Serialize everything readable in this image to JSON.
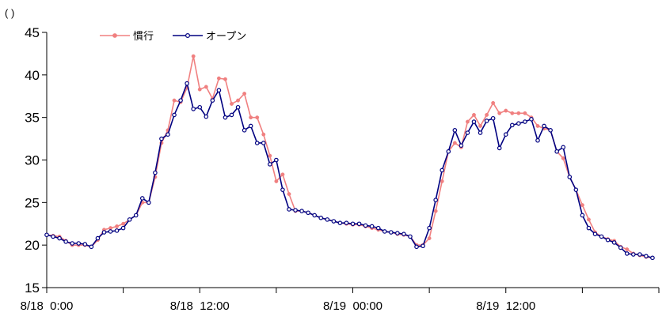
{
  "chart_data": {
    "type": "line",
    "unit_label": "( )",
    "title": "",
    "xlabel": "",
    "ylabel": "",
    "ylim": [
      15,
      45
    ],
    "yticks": [
      15,
      20,
      25,
      30,
      35,
      40,
      45
    ],
    "x_range_hours": [
      0,
      48
    ],
    "x_tick_labels": [
      {
        "hour": 0,
        "label": "8/18  0:00"
      },
      {
        "hour": 12,
        "label": "8/18  12:00"
      },
      {
        "hour": 24,
        "label": "8/19  00:00"
      },
      {
        "hour": 36,
        "label": "8/19  12:00"
      }
    ],
    "x_minor_ticks_hours": [
      6,
      18,
      30,
      42
    ],
    "grid": false,
    "legend_placement": "top-left",
    "series": [
      {
        "name": "慣行",
        "color": "#f08080",
        "marker": "filled-circle",
        "x": [
          0.0,
          0.5,
          1.0,
          1.5,
          2.0,
          2.5,
          3.0,
          3.5,
          4.0,
          4.5,
          5.0,
          5.5,
          6.0,
          6.5,
          7.0,
          7.5,
          8.0,
          8.5,
          9.0,
          9.5,
          10.0,
          10.5,
          11.0,
          11.5,
          12.0,
          12.5,
          13.0,
          13.5,
          14.0,
          14.5,
          15.0,
          15.5,
          16.0,
          16.5,
          17.0,
          17.5,
          18.0,
          18.5,
          19.0,
          19.5,
          20.0,
          20.5,
          21.0,
          21.5,
          22.0,
          22.5,
          23.0,
          23.5,
          24.0,
          24.5,
          25.0,
          25.5,
          26.0,
          26.5,
          27.0,
          27.5,
          28.0,
          28.5,
          29.0,
          29.5,
          30.0,
          30.5,
          31.0,
          31.5,
          32.0,
          32.5,
          33.0,
          33.5,
          34.0,
          34.5,
          35.0,
          35.5,
          36.0,
          36.5,
          37.0,
          37.5,
          38.0,
          38.5,
          39.0,
          39.5,
          40.0,
          40.5,
          41.0,
          41.5,
          42.0,
          42.5,
          43.0,
          43.5,
          44.0,
          44.5,
          45.0,
          45.5,
          46.0,
          46.5,
          47.0,
          47.5
        ],
        "values": [
          21.2,
          21.1,
          21.0,
          20.5,
          20.0,
          20.0,
          20.0,
          19.8,
          20.6,
          21.8,
          22.0,
          22.2,
          22.5,
          23.0,
          23.5,
          25.0,
          25.0,
          28.0,
          32.0,
          33.5,
          37.0,
          36.8,
          38.5,
          42.2,
          38.3,
          38.6,
          37.2,
          39.6,
          39.5,
          36.6,
          37.0,
          37.8,
          35.0,
          35.0,
          33.0,
          30.5,
          27.5,
          28.3,
          26.0,
          24.0,
          24.0,
          23.8,
          23.5,
          23.2,
          23.0,
          22.8,
          22.6,
          22.5,
          22.4,
          22.4,
          22.2,
          22.0,
          21.8,
          21.6,
          21.5,
          21.3,
          21.2,
          21.0,
          20.0,
          20.0,
          20.8,
          24.0,
          27.5,
          31.0,
          32.0,
          31.5,
          34.5,
          35.3,
          34.0,
          35.3,
          36.7,
          35.5,
          35.8,
          35.5,
          35.5,
          35.5,
          35.0,
          34.0,
          33.7,
          33.5,
          31.0,
          30.2,
          28.0,
          26.5,
          24.7,
          23.0,
          21.5,
          21.0,
          20.7,
          20.5,
          19.8,
          19.5,
          19.0,
          18.8,
          18.6,
          18.5
        ]
      },
      {
        "name": "オープン",
        "color": "#000080",
        "marker": "open-circle",
        "x": [
          0.0,
          0.5,
          1.0,
          1.5,
          2.0,
          2.5,
          3.0,
          3.5,
          4.0,
          4.5,
          5.0,
          5.5,
          6.0,
          6.5,
          7.0,
          7.5,
          8.0,
          8.5,
          9.0,
          9.5,
          10.0,
          10.5,
          11.0,
          11.5,
          12.0,
          12.5,
          13.0,
          13.5,
          14.0,
          14.5,
          15.0,
          15.5,
          16.0,
          16.5,
          17.0,
          17.5,
          18.0,
          18.5,
          19.0,
          19.5,
          20.0,
          20.5,
          21.0,
          21.5,
          22.0,
          22.5,
          23.0,
          23.5,
          24.0,
          24.5,
          25.0,
          25.5,
          26.0,
          26.5,
          27.0,
          27.5,
          28.0,
          28.5,
          29.0,
          29.5,
          30.0,
          30.5,
          31.0,
          31.5,
          32.0,
          32.5,
          33.0,
          33.5,
          34.0,
          34.5,
          35.0,
          35.5,
          36.0,
          36.5,
          37.0,
          37.5,
          38.0,
          38.5,
          39.0,
          39.5,
          40.0,
          40.5,
          41.0,
          41.5,
          42.0,
          42.5,
          43.0,
          43.5,
          44.0,
          44.5,
          45.0,
          45.5,
          46.0,
          46.5,
          47.0,
          47.5
        ],
        "values": [
          21.2,
          21.0,
          20.8,
          20.4,
          20.2,
          20.2,
          20.1,
          19.8,
          20.8,
          21.5,
          21.6,
          21.7,
          22.0,
          23.0,
          23.5,
          25.5,
          25.0,
          28.5,
          32.5,
          33.0,
          35.3,
          37.0,
          39.0,
          36.0,
          36.2,
          35.1,
          37.0,
          38.2,
          35.0,
          35.3,
          36.2,
          33.5,
          34.0,
          32.0,
          32.0,
          29.5,
          30.0,
          26.5,
          24.2,
          24.1,
          24.0,
          23.8,
          23.5,
          23.2,
          23.0,
          22.8,
          22.6,
          22.6,
          22.5,
          22.5,
          22.3,
          22.2,
          22.0,
          21.6,
          21.5,
          21.4,
          21.3,
          21.0,
          19.8,
          19.9,
          22.0,
          25.3,
          28.8,
          31.0,
          33.5,
          31.7,
          33.2,
          34.5,
          33.2,
          34.6,
          34.9,
          31.4,
          33.0,
          34.1,
          34.3,
          34.5,
          34.8,
          32.3,
          34.0,
          33.5,
          31.0,
          31.5,
          28.0,
          26.5,
          23.5,
          22.0,
          21.3,
          21.0,
          20.6,
          20.3,
          19.7,
          19.0,
          18.9,
          18.9,
          18.7,
          18.5
        ]
      }
    ]
  }
}
